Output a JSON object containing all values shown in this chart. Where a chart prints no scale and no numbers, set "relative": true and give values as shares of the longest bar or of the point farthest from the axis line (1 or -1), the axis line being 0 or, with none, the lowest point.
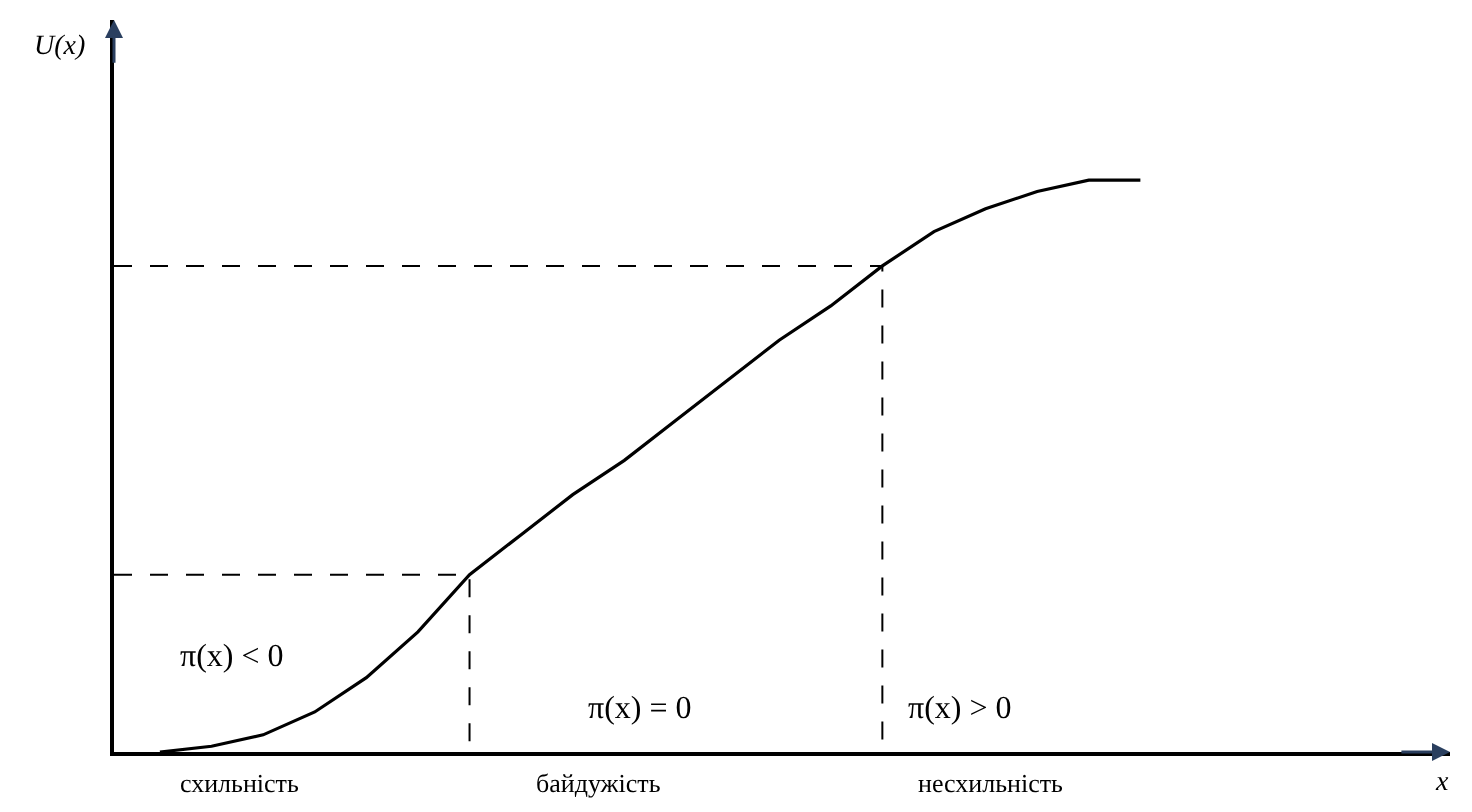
{
  "chart_data": {
    "type": "line",
    "relative": true,
    "legend": false,
    "marker": "none",
    "ylabel": "U(x)",
    "categories": [
      null,
      null,
      null,
      null,
      null,
      null,
      null,
      null,
      null,
      null,
      null,
      null,
      null,
      null,
      null,
      null,
      null,
      null,
      null,
      null
    ],
    "series": [
      {
        "color": "#000000",
        "line_style": "solid",
        "values": [
          0,
          0.01,
          0.03,
          0.07,
          0.13,
          0.21,
          0.31,
          0.38,
          0.45,
          0.51,
          0.58,
          0.65,
          0.72,
          0.78,
          0.85,
          0.91,
          0.95,
          0.98,
          1.0,
          1.0
        ]
      }
    ],
    "ref_lines": [
      {
        "axis": "y",
        "value": 0.31,
        "color": "#000000",
        "line_style": "dashed"
      },
      {
        "axis": "y",
        "value": 0.85,
        "color": "#000000",
        "line_style": "dashed"
      }
    ],
    "annotations": [
      "π(x) < 0",
      "π(x) = 0",
      "π(x) > 0",
      "схильність",
      "байдужість",
      "несхильність",
      "x"
    ]
  }
}
